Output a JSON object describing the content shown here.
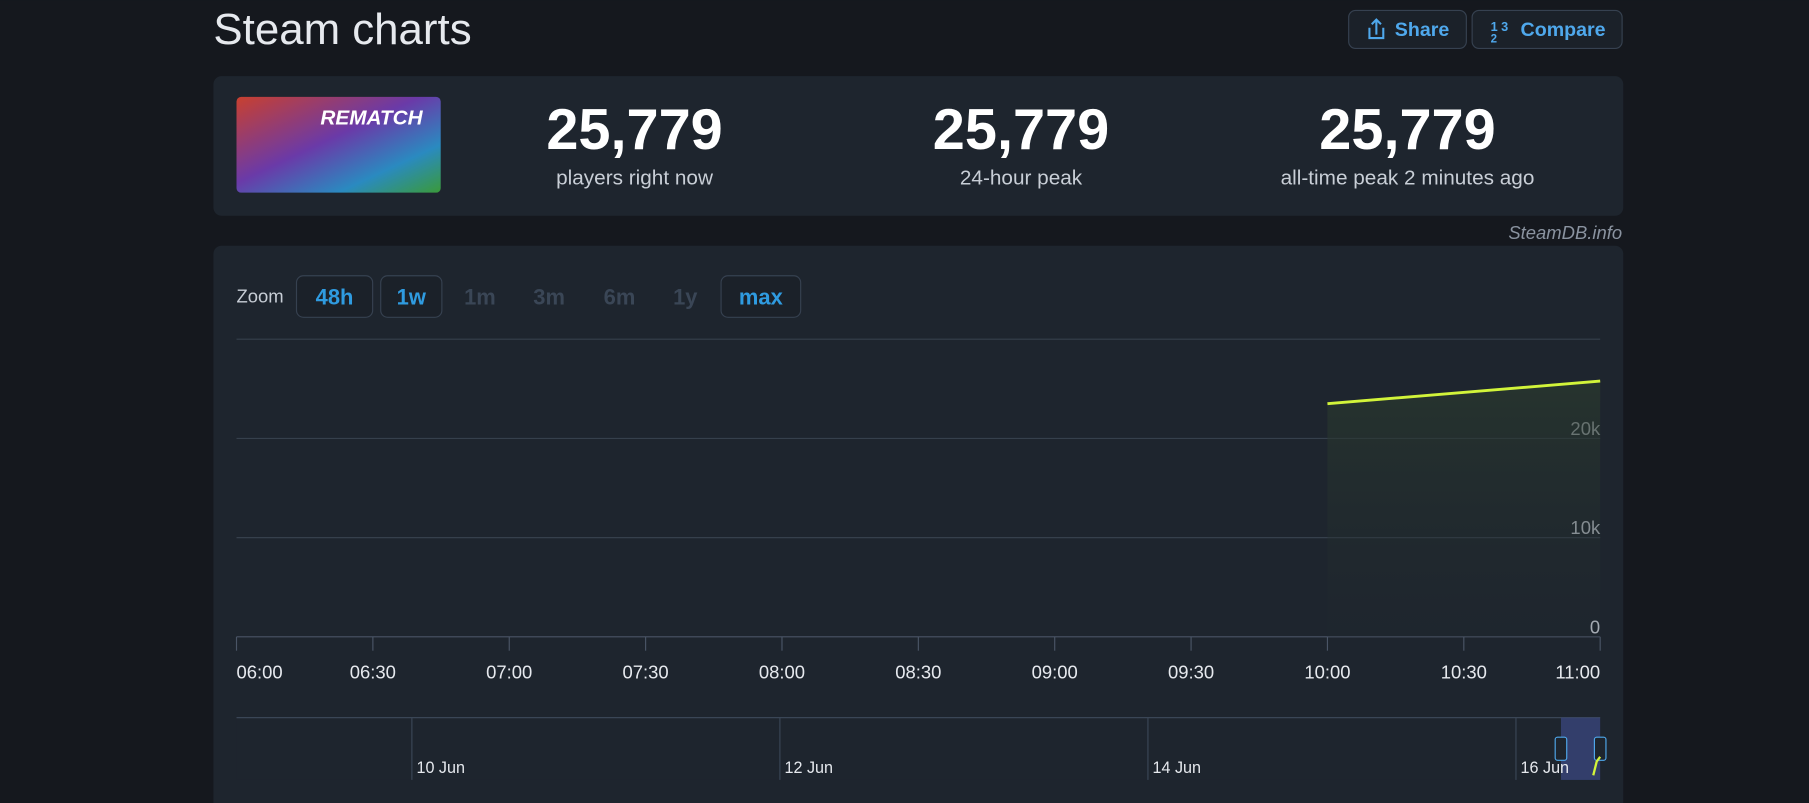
{
  "header": {
    "title": "Steam charts",
    "share": "Share",
    "compare": "Compare"
  },
  "game": {
    "logo": "REMATCH"
  },
  "stats": [
    {
      "value": "25,779",
      "label": "players right now"
    },
    {
      "value": "25,779",
      "label": "24-hour peak"
    },
    {
      "value": "25,779",
      "label": "all-time peak 2 minutes ago"
    }
  ],
  "credit": "SteamDB.info",
  "zoom": {
    "label": "Zoom",
    "options": [
      "48h",
      "1w",
      "1m",
      "3m",
      "6m",
      "1y",
      "max"
    ],
    "active": [
      "48h",
      "1w",
      "max"
    ]
  },
  "chart_data": {
    "type": "line",
    "x": [
      "10:00",
      "11:00"
    ],
    "series": [
      {
        "name": "Players",
        "color": "#d2f43a",
        "values": [
          23500,
          25779
        ]
      }
    ],
    "xlim": [
      "06:00",
      "11:00"
    ],
    "xticks": [
      "06:00",
      "06:30",
      "07:00",
      "07:30",
      "08:00",
      "08:30",
      "09:00",
      "09:30",
      "10:00",
      "10:30",
      "11:00"
    ],
    "ylim": [
      0,
      30000
    ],
    "yticks": [
      0,
      {
        "value": 10000,
        "label": "10k"
      },
      {
        "value": 20000,
        "label": "20k"
      }
    ],
    "grid": true
  },
  "navigator": {
    "labels": [
      "10 Jun",
      "12 Jun",
      "14 Jun",
      "16 Jun"
    ]
  }
}
